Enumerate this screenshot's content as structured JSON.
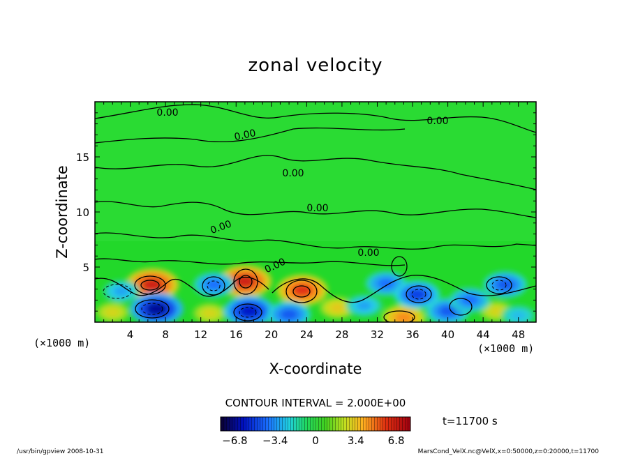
{
  "chart_data": {
    "type": "heatmap",
    "title": "zonal velocity",
    "xlabel": "X-coordinate",
    "ylabel": "Z-coordinate",
    "x_unit": "(×1000 m)",
    "y_unit": "(×1000 m)",
    "xlim": [
      0,
      50
    ],
    "ylim": [
      0,
      20
    ],
    "x_ticks": [
      "4",
      "8",
      "12",
      "16",
      "20",
      "24",
      "28",
      "32",
      "36",
      "40",
      "44",
      "48"
    ],
    "y_ticks": [
      "5",
      "10",
      "15"
    ],
    "contour_interval_text": "CONTOUR INTERVAL = 2.000E+00",
    "time_text": "t=11700 s",
    "colorbar": {
      "min": -8,
      "max": 8,
      "tick_labels": [
        "−6.8",
        "−3.4",
        "0",
        "3.4",
        "6.8"
      ],
      "tick_values": [
        -6.8,
        -3.4,
        0,
        3.4,
        6.8
      ]
    },
    "contour_labels": [
      "0.00",
      "0.00",
      "0.00",
      "0.00",
      "0.00",
      "0.00",
      "0.00",
      "0.00"
    ],
    "cells": [
      {
        "x": 6.5,
        "z": 3.4,
        "value": 7.0
      },
      {
        "x": 17.0,
        "z": 3.7,
        "value": 7.0
      },
      {
        "x": 23.5,
        "z": 2.9,
        "value": 6.5
      },
      {
        "x": 35.0,
        "z": 0.4,
        "value": 5.0
      },
      {
        "x": 27.5,
        "z": 1.3,
        "value": 3.5
      },
      {
        "x": 2.0,
        "z": 0.9,
        "value": 3.0
      },
      {
        "x": 13.0,
        "z": 0.8,
        "value": 3.0
      },
      {
        "x": 45.5,
        "z": 1.0,
        "value": 3.0
      },
      {
        "x": 7.0,
        "z": 1.2,
        "value": -7.0
      },
      {
        "x": 17.5,
        "z": 1.0,
        "value": -6.5
      },
      {
        "x": 13.5,
        "z": 3.4,
        "value": -4.5
      },
      {
        "x": 3.0,
        "z": 2.8,
        "value": -3.5
      },
      {
        "x": 22.0,
        "z": 0.7,
        "value": -5.0
      },
      {
        "x": 33.0,
        "z": 3.5,
        "value": -4.5
      },
      {
        "x": 36.5,
        "z": 2.5,
        "value": -5.5
      },
      {
        "x": 40.0,
        "z": 1.0,
        "value": -5.0
      },
      {
        "x": 46.5,
        "z": 3.4,
        "value": -5.0
      },
      {
        "x": 42.5,
        "z": 2.0,
        "value": -4.5
      },
      {
        "x": 30.5,
        "z": 1.5,
        "value": -3.5
      },
      {
        "x": 48.0,
        "z": 0.6,
        "value": -3.0
      }
    ]
  },
  "footer": {
    "left": "/usr/bin/gpview   2008-10-31",
    "right": "MarsCond_VelX.nc@VelX,x=0:50000,z=0:20000,t=11700"
  },
  "colors": {
    "background_field": "#22dd22",
    "negative_extreme": "#0000a0",
    "positive_extreme": "#c81010"
  }
}
